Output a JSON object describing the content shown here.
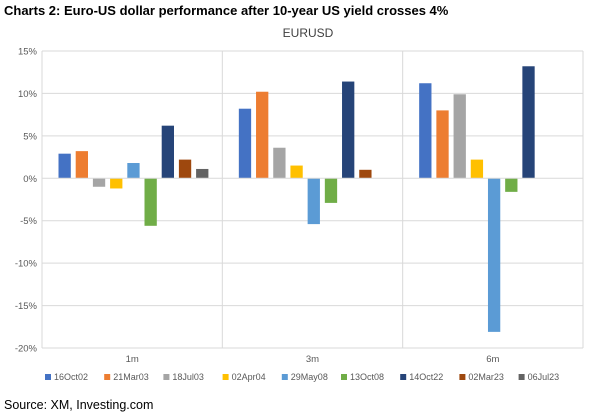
{
  "figure": {
    "title": "Charts 2: Euro-US dollar performance after 10-year US yield crosses 4%",
    "source": "Source: XM, Investing.com"
  },
  "chart_data": {
    "type": "bar",
    "title": "EURUSD",
    "xlabel": "",
    "ylabel": "",
    "categories": [
      "1m",
      "3m",
      "6m"
    ],
    "ylim": [
      -20,
      15
    ],
    "yticks": [
      15,
      10,
      5,
      0,
      -5,
      -10,
      -15,
      -20
    ],
    "ytick_labels": [
      "15%",
      "10%",
      "5%",
      "0%",
      "-5%",
      "-10%",
      "-15%",
      "-20%"
    ],
    "grid": true,
    "legend_position": "bottom",
    "series": [
      {
        "name": "16Oct02",
        "color": "#4472C4",
        "values": [
          2.9,
          8.2,
          11.2
        ]
      },
      {
        "name": "21Mar03",
        "color": "#ED7D31",
        "values": [
          3.2,
          10.2,
          8.0
        ]
      },
      {
        "name": "18Jul03",
        "color": "#A5A5A5",
        "values": [
          -1.0,
          3.6,
          9.9
        ]
      },
      {
        "name": "02Apr04",
        "color": "#FFC000",
        "values": [
          -1.2,
          1.5,
          2.2
        ]
      },
      {
        "name": "29May08",
        "color": "#5B9BD5",
        "values": [
          1.8,
          -5.4,
          -18.1
        ]
      },
      {
        "name": "13Oct08",
        "color": "#70AD47",
        "values": [
          -5.6,
          -2.9,
          -1.6
        ]
      },
      {
        "name": "14Oct22",
        "color": "#264478",
        "values": [
          6.2,
          11.4,
          13.2
        ]
      },
      {
        "name": "02Mar23",
        "color": "#9E480E",
        "values": [
          2.2,
          1.0,
          null
        ]
      },
      {
        "name": "06Jul23",
        "color": "#636363",
        "values": [
          1.1,
          null,
          null
        ]
      }
    ]
  }
}
